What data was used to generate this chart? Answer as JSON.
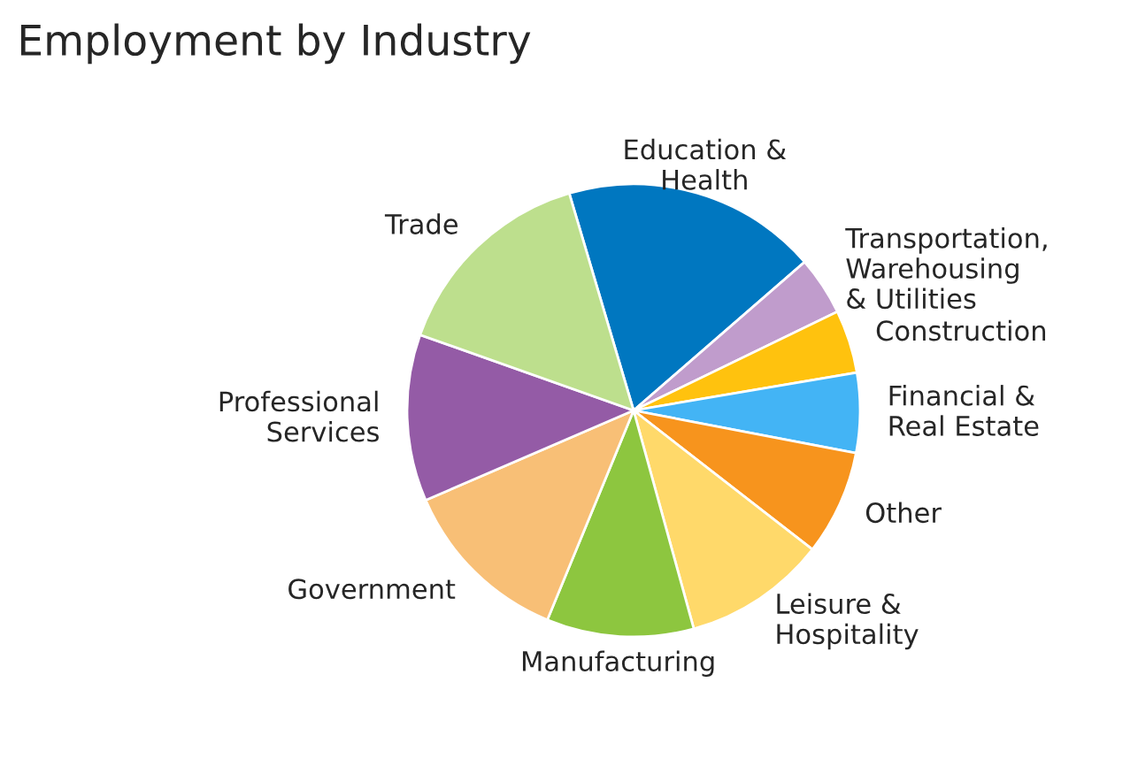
{
  "chart_data": {
    "type": "pie",
    "title": "Employment by Industry",
    "categories": [
      "Education &\nHealth",
      "Transportation,\nWarehousing\n& Utilities",
      "Construction",
      "Financial &\nReal Estate",
      "Other",
      "Leisure &\nHospitality",
      "Manufacturing",
      "Government",
      "Professional\nServices",
      "Trade"
    ],
    "values": [
      18.2,
      4.2,
      4.5,
      5.7,
      7.5,
      10.2,
      10.5,
      12.3,
      11.9,
      15.0
    ],
    "colors": [
      "#0077c0",
      "#c09ccc",
      "#ffc20e",
      "#43b4f5",
      "#f7941d",
      "#ffd96a",
      "#8dc63f",
      "#f8bf76",
      "#945ba6",
      "#bddf8d"
    ]
  }
}
